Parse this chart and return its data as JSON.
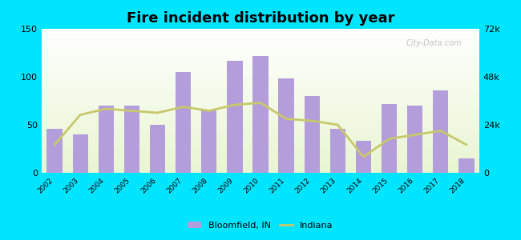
{
  "years": [
    2002,
    2003,
    2004,
    2005,
    2006,
    2007,
    2008,
    2009,
    2010,
    2011,
    2012,
    2013,
    2014,
    2015,
    2016,
    2017,
    2018
  ],
  "bloomfield_values": [
    46,
    40,
    70,
    70,
    50,
    105,
    65,
    117,
    122,
    98,
    80,
    46,
    33,
    72,
    70,
    86,
    15
  ],
  "indiana_values": [
    14000,
    29000,
    32000,
    31000,
    30000,
    33000,
    31000,
    34000,
    35000,
    27000,
    26000,
    24000,
    8000,
    17000,
    19000,
    21000,
    14000
  ],
  "bar_color": "#b39ddb",
  "line_color": "#c8c86a",
  "outer_bg": "#00e5ff",
  "title": "Fire incident distribution by year",
  "title_fontsize": 13,
  "left_ylim": [
    0,
    150
  ],
  "right_ylim": [
    0,
    72000
  ],
  "left_yticks": [
    0,
    50,
    100,
    150
  ],
  "right_yticks": [
    0,
    24000,
    48000,
    72000
  ],
  "right_yticklabels": [
    "0",
    "24k",
    "48k",
    "72k"
  ],
  "legend_label_bar": "Bloomfield, IN",
  "legend_label_line": "Indiana",
  "watermark": "City-Data.com"
}
